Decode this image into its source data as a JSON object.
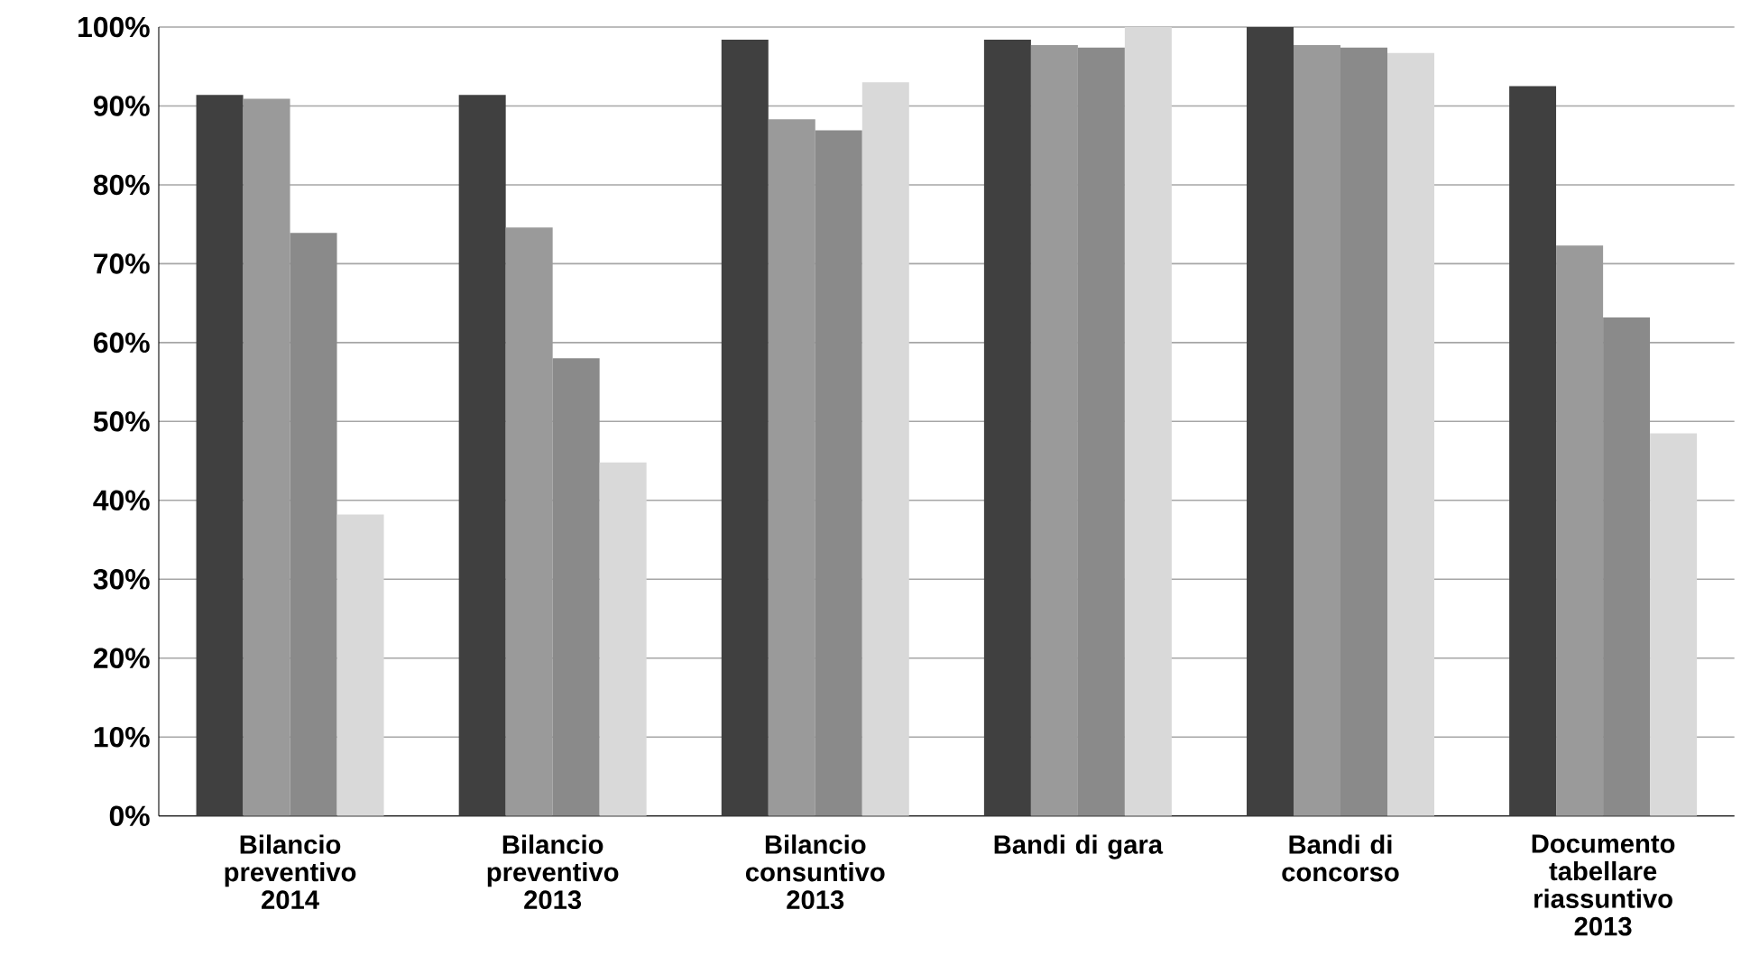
{
  "chart_data": {
    "type": "bar",
    "categories": [
      "Bilancio preventivo 2014",
      "Bilancio preventivo 2013",
      "Bilancio consuntivo 2013",
      "Bandi di gara",
      "Bandi di concorso",
      "Documento tabellare riassuntivo 2013"
    ],
    "series": [
      {
        "color": "#404040",
        "values": [
          91.4,
          91.4,
          98.4,
          98.4,
          100,
          92.5
        ]
      },
      {
        "color": "#9a9a9a",
        "values": [
          90.9,
          74.6,
          88.3,
          97.7,
          97.7,
          72.3
        ]
      },
      {
        "color": "#8a8a8a",
        "values": [
          73.9,
          58.0,
          86.9,
          97.4,
          97.4,
          63.2
        ]
      },
      {
        "color": "#d9d9d9",
        "values": [
          38.2,
          44.8,
          93.0,
          100,
          96.7,
          48.5
        ]
      }
    ],
    "ylim": [
      0,
      100
    ],
    "yticks": [
      {
        "value": 0,
        "label": "0%"
      },
      {
        "value": 10,
        "label": "10%"
      },
      {
        "value": 20,
        "label": "20%"
      },
      {
        "value": 30,
        "label": "30%"
      },
      {
        "value": 40,
        "label": "40%"
      },
      {
        "value": 50,
        "label": "50%"
      },
      {
        "value": 60,
        "label": "60%"
      },
      {
        "value": 70,
        "label": "70%"
      },
      {
        "value": 80,
        "label": "80%"
      },
      {
        "value": 90,
        "label": "90%"
      },
      {
        "value": 100,
        "label": "100%"
      }
    ],
    "grid": "y"
  }
}
